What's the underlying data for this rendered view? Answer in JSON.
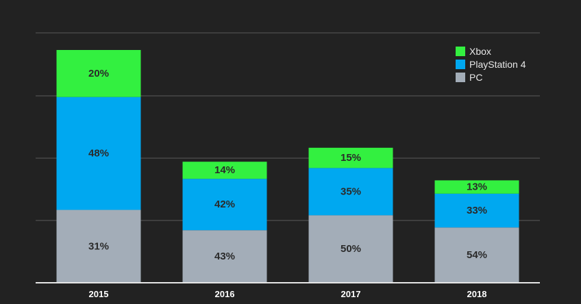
{
  "chart_data": {
    "type": "bar",
    "stacked": true,
    "categories": [
      "2015",
      "2016",
      "2017",
      "2018"
    ],
    "series": [
      {
        "name": "PC",
        "color": "#a3adb8",
        "values": [
          31,
          43,
          50,
          54
        ],
        "labels": [
          "31%",
          "43%",
          "50%",
          "54%"
        ]
      },
      {
        "name": "PlayStation 4",
        "color": "#00a8f0",
        "values": [
          48,
          42,
          35,
          33
        ],
        "labels": [
          "48%",
          "42%",
          "35%",
          "33%"
        ]
      },
      {
        "name": "Xbox",
        "color": "#33f040",
        "values": [
          20,
          14,
          15,
          13
        ],
        "labels": [
          "20%",
          "14%",
          "15%",
          "13%"
        ]
      }
    ],
    "bar_totals_relative": [
      1.0,
      0.52,
      0.58,
      0.44
    ],
    "legend_order": [
      "Xbox",
      "PlayStation 4",
      "PC"
    ],
    "legend_position": "top-right",
    "grid": true,
    "title": "",
    "xlabel": "",
    "ylabel": ""
  },
  "colors": {
    "background": "#222222",
    "grid": "#5a5a5a",
    "axis": "#e6e6e6"
  }
}
